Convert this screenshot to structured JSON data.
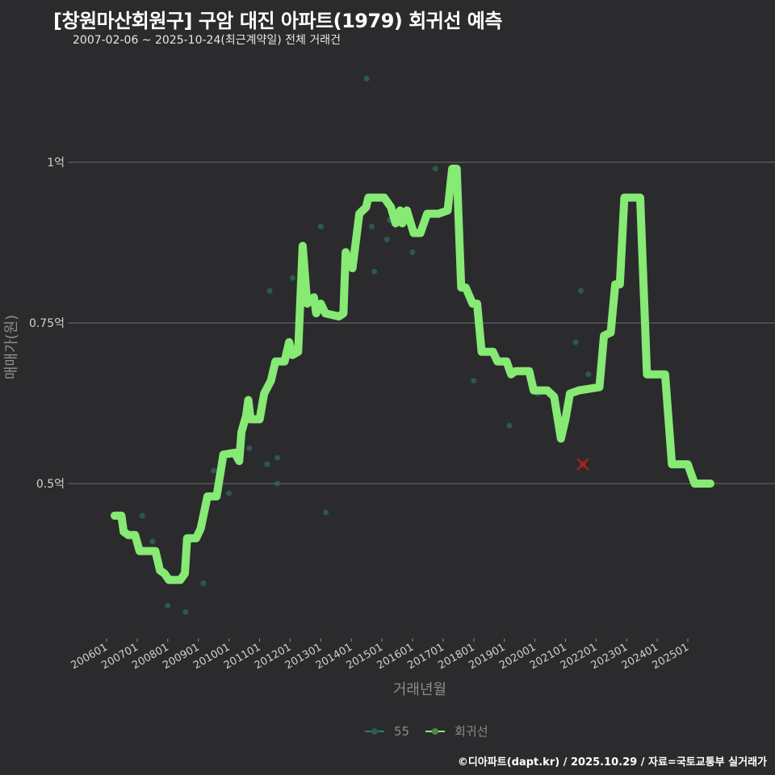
{
  "header": {
    "title": "[창원마산회원구] 구암 대진 아파트(1979) 회귀선 예측",
    "subtitle": "2007-02-06 ~ 2025-10-24(최근계약일) 전체 거래건"
  },
  "axes": {
    "y_title": "매매가(원)",
    "x_title": "거래년월",
    "y_ticks": [
      {
        "label": "1억",
        "value": 1.0
      },
      {
        "label": "0.75억",
        "value": 0.75
      },
      {
        "label": "0.5억",
        "value": 0.5
      }
    ],
    "x_ticks": [
      "200601",
      "200701",
      "200801",
      "200901",
      "201001",
      "201101",
      "201201",
      "201301",
      "201401",
      "201501",
      "201601",
      "201701",
      "201801",
      "201901",
      "202001",
      "202101",
      "202201",
      "202301",
      "202401",
      "202501"
    ]
  },
  "legend": {
    "items": [
      {
        "label": "55",
        "color": "#2a7a6a",
        "name": "legend-item-55"
      },
      {
        "label": "회귀선",
        "color": "#86ea74",
        "name": "legend-item-regression"
      }
    ]
  },
  "footer": {
    "credit": "©디아파트(dapt.kr) / 2025.10.29 / 자료=국토교통부 실거래가"
  },
  "colors": {
    "background": "#2b2b2d",
    "regression_line": "#86ea74",
    "scatter_point": "#2a6b5e",
    "outlier_marker": "#b32020",
    "grid": "#6e6e6e"
  },
  "chart_data": {
    "type": "line",
    "title": "[창원마산회원구] 구암 대진 아파트(1979) 회귀선 예측",
    "subtitle": "2007-02-06 ~ 2025-10-24(최근계약일) 전체 거래건",
    "xlabel": "거래년월",
    "ylabel": "매매가(원)",
    "ylim_eok": [
      0.25,
      1.15
    ],
    "x_range": [
      "2006-01",
      "2026-01"
    ],
    "grid": {
      "y_major": true,
      "x_major": false
    },
    "legend_position": "bottom",
    "series": [
      {
        "name": "회귀선",
        "type": "line",
        "unit": "억",
        "points": [
          [
            "2007.1",
            0.45
          ],
          [
            "2007.4",
            0.45
          ],
          [
            "2007.5",
            0.425
          ],
          [
            "2007.7",
            0.42
          ],
          [
            "2008.0",
            0.42
          ],
          [
            "2008.2",
            0.395
          ],
          [
            "2008.9",
            0.395
          ],
          [
            "2009.1",
            0.365
          ],
          [
            "2009.3",
            0.36
          ],
          [
            "2009.5",
            0.35
          ],
          [
            "2010.0",
            0.35
          ],
          [
            "2010.2",
            0.36
          ],
          [
            "2010.3",
            0.415
          ],
          [
            "2010.7",
            0.415
          ],
          [
            "2010.9",
            0.43
          ],
          [
            "2011.2",
            0.48
          ],
          [
            "2011.6",
            0.48
          ],
          [
            "2011.9",
            0.545
          ],
          [
            "2012.4",
            0.548
          ],
          [
            "2012.6",
            0.535
          ],
          [
            "2012.7",
            0.58
          ],
          [
            "2012.9",
            0.605
          ],
          [
            "2013.0",
            0.63
          ],
          [
            "2013.1",
            0.6
          ],
          [
            "2013.5",
            0.6
          ],
          [
            "2013.7",
            0.64
          ],
          [
            "2014.0",
            0.66
          ],
          [
            "2014.2",
            0.69
          ],
          [
            "2014.6",
            0.69
          ],
          [
            "2014.8",
            0.72
          ],
          [
            "2014.95",
            0.7
          ],
          [
            "2015.2",
            0.705
          ],
          [
            "2015.4",
            0.87
          ],
          [
            "2015.6",
            0.78
          ],
          [
            "2015.9",
            0.79
          ],
          [
            "2016.0",
            0.765
          ],
          [
            "2016.2",
            0.78
          ],
          [
            "2016.4",
            0.765
          ],
          [
            "2017.0",
            0.76
          ],
          [
            "2017.2",
            0.765
          ],
          [
            "2017.3",
            0.86
          ],
          [
            "2017.6",
            0.835
          ],
          [
            "2017.9",
            0.92
          ],
          [
            "2018.2",
            0.93
          ],
          [
            "2018.3",
            0.945
          ],
          [
            "2018.6",
            0.945
          ],
          [
            "2019.0",
            0.945
          ],
          [
            "2019.3",
            0.93
          ],
          [
            "2019.5",
            0.905
          ],
          [
            "2019.7",
            0.925
          ],
          [
            "2019.8",
            0.905
          ],
          [
            "2020.0",
            0.925
          ],
          [
            "2020.3",
            0.89
          ],
          [
            "2020.6",
            0.89
          ],
          [
            "2020.9",
            0.92
          ],
          [
            "2021.4",
            0.92
          ],
          [
            "2021.8",
            0.925
          ],
          [
            "2022.0",
            0.99
          ],
          [
            "2022.2",
            0.99
          ],
          [
            "2022.4",
            0.805
          ],
          [
            "2022.6",
            0.805
          ],
          [
            "2022.9",
            0.78
          ],
          [
            "2023.1",
            0.78
          ],
          [
            "2023.3",
            0.705
          ],
          [
            "2023.8",
            0.705
          ],
          [
            "2024.0",
            0.69
          ],
          [
            "2024.4",
            0.69
          ],
          [
            "2024.6",
            0.67
          ],
          [
            "2024.8",
            0.675
          ],
          [
            "2025.4",
            0.675
          ],
          [
            "2025.6",
            0.645
          ],
          [
            "2026.2",
            0.645
          ],
          [
            "2026.5",
            0.635
          ],
          [
            "2026.8",
            0.57
          ],
          [
            "2027.0",
            0.6
          ],
          [
            "2027.2",
            0.64
          ],
          [
            "2027.6",
            0.645
          ],
          [
            "2028.5",
            0.65
          ],
          [
            "2028.7",
            0.73
          ],
          [
            "2029.0",
            0.735
          ],
          [
            "2029.2",
            0.81
          ],
          [
            "2029.4",
            0.81
          ],
          [
            "2029.6",
            0.945
          ],
          [
            "2030.3",
            0.945
          ],
          [
            "2030.6",
            0.67
          ],
          [
            "2031.4",
            0.67
          ],
          [
            "2031.7",
            0.53
          ],
          [
            "2032.4",
            0.53
          ],
          [
            "2032.7",
            0.5
          ],
          [
            "2033.4",
            0.5
          ]
        ],
        "note": "x values are pixel-derived decimal years on the plotted axis; regression line spans ~2007-02 to ~2025-10"
      },
      {
        "name": "55",
        "type": "scatter",
        "unit": "억",
        "points": [
          [
            "2007-03",
            0.45
          ],
          [
            "2007-07",
            0.41
          ],
          [
            "2008-01",
            0.31
          ],
          [
            "2008-08",
            0.385
          ],
          [
            "2008-08",
            0.3
          ],
          [
            "2009-03",
            0.345
          ],
          [
            "2009-07",
            0.52
          ],
          [
            "2010-01",
            0.485
          ],
          [
            "2010-09",
            0.555
          ],
          [
            "2011-04",
            0.53
          ],
          [
            "2011-05",
            0.8
          ],
          [
            "2011-08",
            0.54
          ],
          [
            "2011-08",
            0.5
          ],
          [
            "2012-02",
            0.82
          ],
          [
            "2012-04",
            0.75
          ],
          [
            "2013-01",
            0.9
          ],
          [
            "2013-03",
            0.455
          ],
          [
            "2014-07",
            1.13
          ],
          [
            "2014-09",
            0.9
          ],
          [
            "2014-10",
            0.83
          ],
          [
            "2015-03",
            0.88
          ],
          [
            "2015-04",
            0.91
          ],
          [
            "2016-01",
            0.86
          ],
          [
            "2016-10",
            0.99
          ],
          [
            "2018-01",
            0.66
          ],
          [
            "2019-03",
            0.59
          ],
          [
            "2020-02",
            0.64
          ],
          [
            "2021-05",
            0.72
          ],
          [
            "2021-07",
            0.8
          ],
          [
            "2021-10",
            0.67
          ]
        ]
      }
    ],
    "outliers": [
      {
        "x": "2021-11",
        "value": 0.53,
        "marker": "x",
        "color": "#b32020"
      }
    ]
  }
}
